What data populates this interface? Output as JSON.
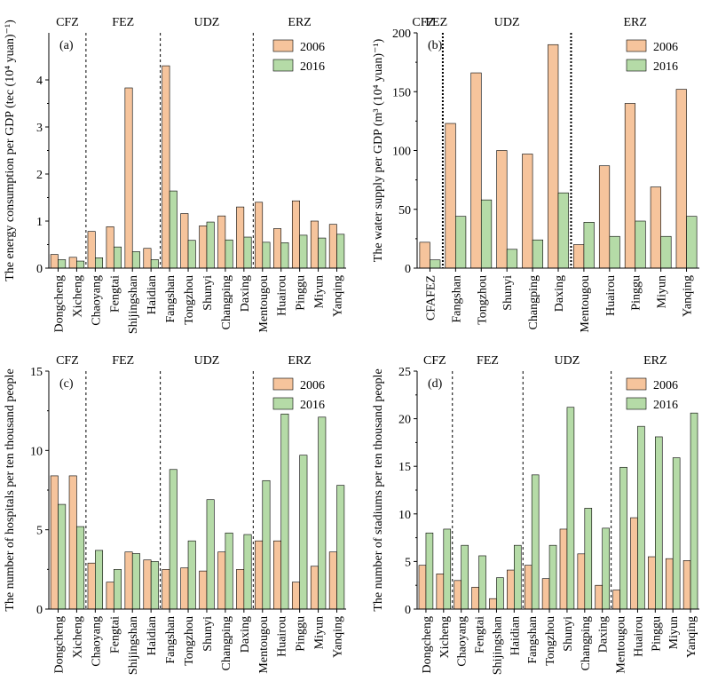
{
  "colors": {
    "y2006": "#f6c49c",
    "y2016": "#b5dba7",
    "axis": "#000000"
  },
  "chart_data": [
    {
      "id": "a",
      "type": "bar",
      "panel_label": "(a)",
      "ylabel": "The energy consumption per GDP (tec (10⁴ yuan)⁻¹)",
      "ylim": [
        0,
        5
      ],
      "yticks": [
        0,
        1,
        2,
        3,
        4
      ],
      "categories": [
        "Dongcheng",
        "Xicheng",
        "Chaoyang",
        "Fengtai",
        "Shijingshan",
        "Haidian",
        "Fangshan",
        "Tongzhou",
        "Shunyi",
        "Changping",
        "Daxing",
        "Mentougou",
        "Huairou",
        "Pinggu",
        "Miyun",
        "Yanqing"
      ],
      "zones": [
        {
          "label": "CFZ",
          "start": 0,
          "end": 2
        },
        {
          "label": "FEZ",
          "start": 2,
          "end": 6
        },
        {
          "label": "UDZ",
          "start": 6,
          "end": 11
        },
        {
          "label": "ERZ",
          "start": 11,
          "end": 16
        }
      ],
      "series": [
        {
          "name": "2006",
          "values": [
            0.29,
            0.23,
            0.78,
            0.88,
            3.83,
            0.42,
            4.3,
            1.16,
            0.9,
            1.11,
            1.3,
            1.4,
            0.84,
            1.43,
            1.0,
            0.93
          ]
        },
        {
          "name": "2016",
          "values": [
            0.18,
            0.15,
            0.22,
            0.45,
            0.35,
            0.18,
            1.64,
            0.59,
            0.98,
            0.6,
            0.66,
            0.55,
            0.54,
            0.7,
            0.64,
            0.72
          ]
        }
      ],
      "legend_position": "top-right"
    },
    {
      "id": "b",
      "type": "bar",
      "panel_label": "(b)",
      "ylabel": "The water supply per GDP (m³ (10⁴ yuan)⁻¹)",
      "ylim": [
        0,
        200
      ],
      "yticks": [
        0,
        50,
        100,
        150,
        200
      ],
      "categories": [
        "CFAFEZ",
        "Fangshan",
        "Tongzhou",
        "Shunyi",
        "Changping",
        "Daxing",
        "Mentougou",
        "Huairou",
        "Pinggu",
        "Miyun",
        "Yanqing"
      ],
      "zones": [
        {
          "label": "CFZ",
          "start": 0,
          "end": 0.5
        },
        {
          "label": "FEZ",
          "start": 0.5,
          "end": 1
        },
        {
          "label": "UDZ",
          "start": 1,
          "end": 6
        },
        {
          "label": "ERZ",
          "start": 6,
          "end": 11
        }
      ],
      "zone_lines": [
        1,
        6
      ],
      "series": [
        {
          "name": "2006",
          "values": [
            22,
            123,
            166,
            100,
            97,
            190,
            20,
            87,
            140,
            69,
            152
          ]
        },
        {
          "name": "2016",
          "values": [
            7,
            44,
            58,
            16,
            24,
            64,
            39,
            27,
            40,
            27,
            44
          ]
        }
      ],
      "legend_position": "top-right"
    },
    {
      "id": "c",
      "type": "bar",
      "panel_label": "(c)",
      "ylabel": "The number of hospitals per ten thousand people",
      "ylim": [
        0,
        15
      ],
      "yticks": [
        0,
        5,
        10,
        15
      ],
      "categories": [
        "Dongcheng",
        "Xicheng",
        "Chaoyang",
        "Fengtai",
        "Shijingshan",
        "Haidian",
        "Fangshan",
        "Tongzhou",
        "Shunyi",
        "Changping",
        "Daxing",
        "Mentougou",
        "Huairou",
        "Pinggu",
        "Miyun",
        "Yanqing"
      ],
      "zones": [
        {
          "label": "CFZ",
          "start": 0,
          "end": 2
        },
        {
          "label": "FEZ",
          "start": 2,
          "end": 6
        },
        {
          "label": "UDZ",
          "start": 6,
          "end": 11
        },
        {
          "label": "ERZ",
          "start": 11,
          "end": 16
        }
      ],
      "series": [
        {
          "name": "2006",
          "values": [
            8.4,
            8.4,
            2.9,
            1.7,
            3.6,
            3.1,
            2.5,
            2.6,
            2.4,
            3.6,
            2.5,
            4.3,
            4.3,
            1.7,
            2.7,
            3.6
          ]
        },
        {
          "name": "2016",
          "values": [
            6.6,
            5.2,
            3.7,
            2.5,
            3.5,
            3.0,
            8.8,
            4.3,
            6.9,
            4.8,
            4.7,
            8.1,
            12.3,
            9.7,
            12.1,
            7.8
          ]
        }
      ],
      "legend_position": "top-right"
    },
    {
      "id": "d",
      "type": "bar",
      "panel_label": "(d)",
      "ylabel": "The number of stadiums per ten thousand people",
      "ylim": [
        0,
        25
      ],
      "yticks": [
        0,
        5,
        10,
        15,
        20,
        25
      ],
      "categories": [
        "Dongcheng",
        "Xicheng",
        "Chaoyang",
        "Fengtai",
        "Shijingshan",
        "Haidian",
        "Fangshan",
        "Tongzhou",
        "Shunyi",
        "Changping",
        "Daxing",
        "Mentougou",
        "Huairou",
        "Pinggu",
        "Miyun",
        "Yanqing"
      ],
      "zones": [
        {
          "label": "CFZ",
          "start": 0,
          "end": 2
        },
        {
          "label": "FEZ",
          "start": 2,
          "end": 6
        },
        {
          "label": "UDZ",
          "start": 6,
          "end": 11
        },
        {
          "label": "ERZ",
          "start": 11,
          "end": 16
        }
      ],
      "series": [
        {
          "name": "2006",
          "values": [
            4.6,
            3.7,
            3.0,
            2.3,
            1.1,
            4.1,
            4.6,
            3.2,
            8.4,
            5.8,
            2.5,
            2.0,
            9.6,
            5.5,
            5.3,
            5.1
          ]
        },
        {
          "name": "2016",
          "values": [
            8.0,
            8.4,
            6.7,
            5.6,
            3.3,
            6.7,
            14.1,
            6.7,
            21.2,
            10.6,
            8.5,
            14.9,
            19.2,
            18.1,
            15.9,
            20.6
          ]
        }
      ],
      "legend_position": "top-right"
    }
  ]
}
